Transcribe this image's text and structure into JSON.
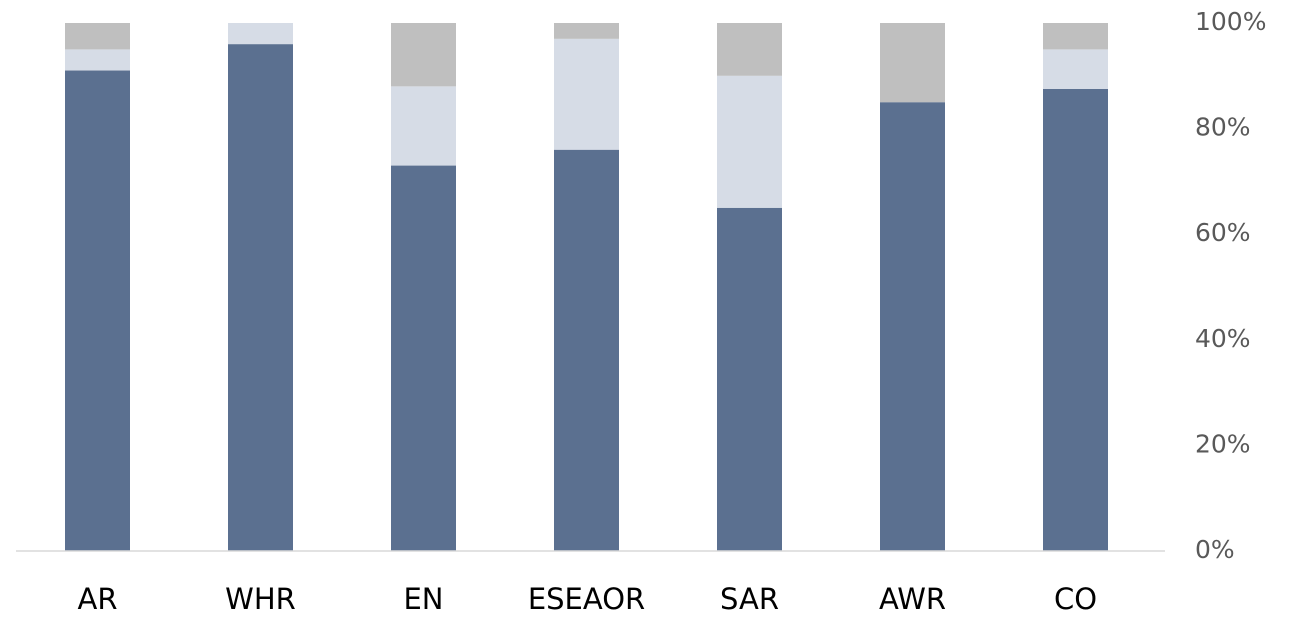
{
  "chart_data": {
    "type": "stacked-bar-100",
    "categories": [
      "AR",
      "WHR",
      "EN",
      "ESEAOR",
      "SAR",
      "AWR",
      "CO"
    ],
    "series": [
      {
        "color": "#5b7090",
        "values": [
          91,
          96,
          73,
          76,
          65,
          85,
          87.5
        ]
      },
      {
        "color": "#d6dce6",
        "values": [
          4,
          4,
          15,
          21,
          25,
          0,
          7.5
        ]
      },
      {
        "color": "#bfbfbf",
        "values": [
          5,
          0,
          12,
          3,
          10,
          15,
          5
        ]
      }
    ],
    "ylim": [
      0,
      100
    ],
    "yticks": [
      {
        "value": 0,
        "label": "0%"
      },
      {
        "value": 20,
        "label": "20%"
      },
      {
        "value": 40,
        "label": "40%"
      },
      {
        "value": 60,
        "label": "60%"
      },
      {
        "value": 80,
        "label": "80%"
      },
      {
        "value": 100,
        "label": "100%"
      }
    ],
    "y_axis_side": "right",
    "grid": false
  }
}
